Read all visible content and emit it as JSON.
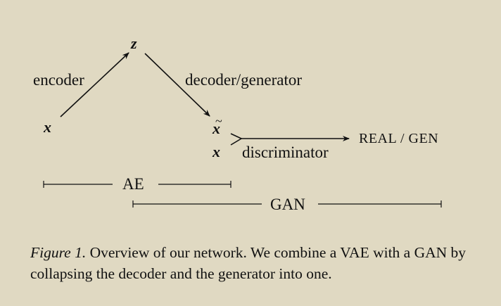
{
  "diagram": {
    "nodes": {
      "z": "z",
      "x_input": "x",
      "x_tilde": "x",
      "tilde_mark": "~",
      "x_real": "x"
    },
    "edge_labels": {
      "encoder": "encoder",
      "decoder_generator": "decoder/generator",
      "discriminator": "discriminator",
      "output": "REAL / GEN"
    },
    "spans": {
      "ae": "AE",
      "gan": "GAN"
    }
  },
  "caption": {
    "label": "Figure 1.",
    "text": "Overview of our network. We combine a VAE with a GAN by collapsing the decoder and the generator into one."
  }
}
